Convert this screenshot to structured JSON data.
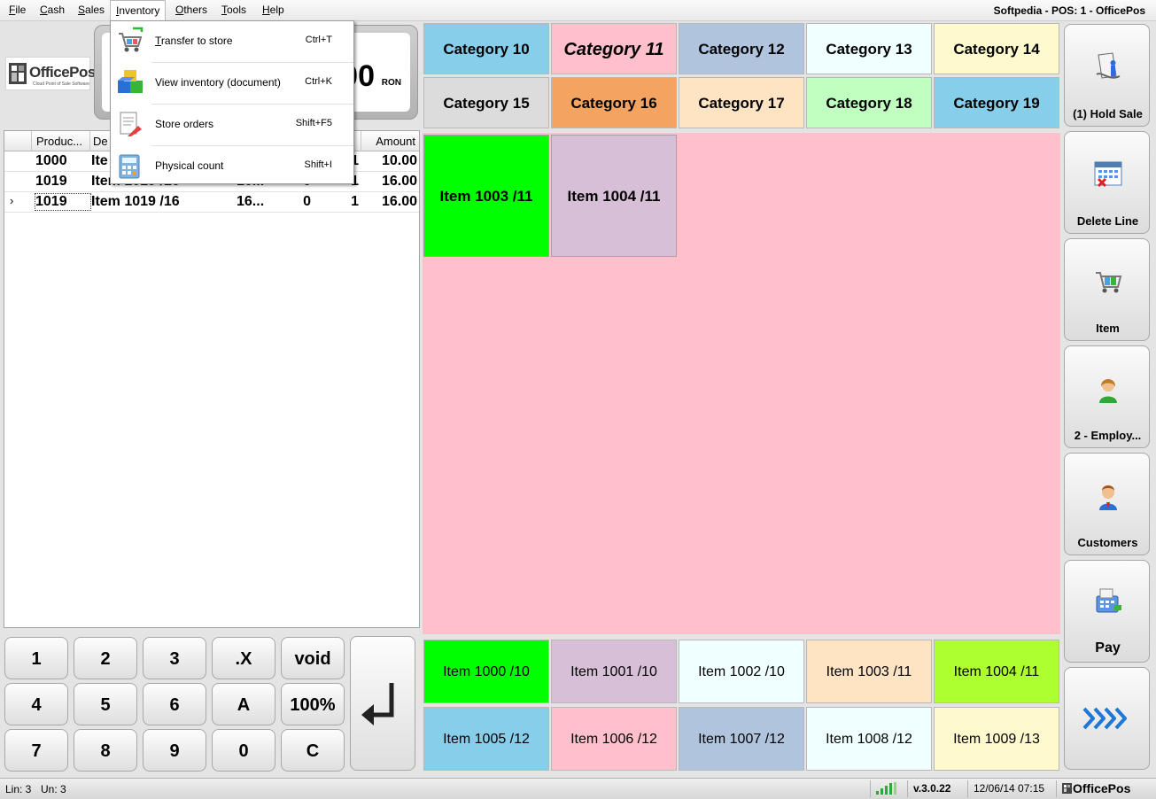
{
  "menubar": {
    "items": [
      {
        "first": "F",
        "rest": "ile"
      },
      {
        "first": "C",
        "rest": "ash"
      },
      {
        "first": "S",
        "rest": "ales"
      },
      {
        "first": "I",
        "rest": "nventory"
      },
      {
        "first": "O",
        "rest": "thers"
      },
      {
        "first": "T",
        "rest": "ools"
      },
      {
        "first": "H",
        "rest": "elp"
      }
    ],
    "title": "Softpedia - POS: 1 - OfficePos"
  },
  "inventory_menu": {
    "items": [
      {
        "label": "Transfer to store",
        "shortcut": "Ctrl+T",
        "icon": "cart-transfer-icon"
      },
      {
        "label": "View inventory (document)",
        "shortcut": "Ctrl+K",
        "icon": "boxes-icon"
      },
      {
        "label": "Store orders",
        "shortcut": "Shift+F5",
        "icon": "store-order-icon"
      },
      {
        "label": "Physical count",
        "shortcut": "Shift+I",
        "icon": "calculator-icon"
      }
    ]
  },
  "logo": {
    "name": "OfficePos",
    "tagline": "Cloud Point of Sale Software"
  },
  "total": {
    "value": "00",
    "currency": "RON"
  },
  "grid": {
    "headers": [
      "Produc...",
      "De",
      "",
      "",
      "Amount"
    ],
    "rows": [
      {
        "code": "1000",
        "desc": "Ite",
        "price": "",
        "disc": "",
        "qty": "1",
        "amount": "10.00"
      },
      {
        "code": "1019",
        "desc": "Item 1019 /16",
        "price": "16...",
        "disc": "0",
        "qty": "1",
        "amount": "16.00"
      },
      {
        "code": "1019",
        "desc": "Item 1019 /16",
        "price": "16...",
        "disc": "0",
        "qty": "1",
        "amount": "16.00",
        "current": true
      }
    ],
    "row_indicator": "›"
  },
  "keypad": {
    "keys": [
      [
        "1",
        "2",
        "3",
        ".X",
        "void"
      ],
      [
        "4",
        "5",
        "6",
        "A",
        "100%"
      ],
      [
        "7",
        "8",
        "9",
        "0",
        "C"
      ]
    ],
    "enter": "↵"
  },
  "categories": [
    {
      "label": "Category 10",
      "color": "#87ceeb"
    },
    {
      "label": "Category 11",
      "color": "#ffc0cb",
      "selected": true
    },
    {
      "label": "Category 12",
      "color": "#b0c4de"
    },
    {
      "label": "Category 13",
      "color": "#f0ffff"
    },
    {
      "label": "Category 14",
      "color": "#fffacd"
    },
    {
      "label": "Category 15",
      "color": "#dcdcdc"
    },
    {
      "label": "Category 16",
      "color": "#f4a460"
    },
    {
      "label": "Category 17",
      "color": "#ffe4c4"
    },
    {
      "label": "Category 18",
      "color": "#c0ffc0"
    },
    {
      "label": "Category 19",
      "color": "#87ceeb"
    }
  ],
  "products": [
    {
      "label": "Item 1003 /11",
      "color": "#00ff00"
    },
    {
      "label": "Item 1004 /11",
      "color": "#d8bfd8"
    }
  ],
  "favorites": [
    {
      "label": "Item 1000 /10",
      "color": "#00ff00"
    },
    {
      "label": "Item 1001 /10",
      "color": "#d8bfd8"
    },
    {
      "label": "Item 1002 /10",
      "color": "#f0ffff"
    },
    {
      "label": "Item 1003 /11",
      "color": "#ffe4c4"
    },
    {
      "label": "Item 1004 /11",
      "color": "#adff2f"
    },
    {
      "label": "Item 1005 /12",
      "color": "#87ceeb"
    },
    {
      "label": "Item 1006 /12",
      "color": "#ffc0cb"
    },
    {
      "label": "Item 1007 /12",
      "color": "#b0c4de"
    },
    {
      "label": "Item 1008 /12",
      "color": "#f0ffff"
    },
    {
      "label": "Item 1009 /13",
      "color": "#fffacd"
    }
  ],
  "side_buttons": [
    {
      "label": "(1) Hold Sale",
      "icon": "hold-sale-icon"
    },
    {
      "label": "Delete Line",
      "icon": "delete-line-icon"
    },
    {
      "label": "Item",
      "icon": "item-cart-icon"
    },
    {
      "label": "2 - Employ...",
      "icon": "employee-icon"
    },
    {
      "label": "Customers",
      "icon": "customer-icon"
    },
    {
      "label": "Pay",
      "icon": "pay-icon"
    },
    {
      "label": "",
      "icon": "more-arrows-icon"
    }
  ],
  "status": {
    "lines": "Lin: 3",
    "units": "Un: 3",
    "version": "v.3.0.22",
    "datetime": "12/06/14 07:15",
    "brand": "OfficePos"
  }
}
